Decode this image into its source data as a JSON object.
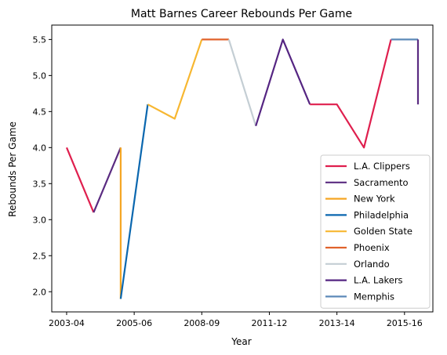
{
  "chart_data": {
    "type": "line",
    "title": "Matt Barnes Career Rebounds Per Game",
    "xlabel": "Year",
    "ylabel": "Rebounds Per Game",
    "ylim": [
      1.72,
      5.7
    ],
    "xlim": [
      -0.55,
      13.55
    ],
    "yticks": [
      "2.0",
      "2.5",
      "3.0",
      "3.5",
      "4.0",
      "4.5",
      "5.0",
      "5.5"
    ],
    "xticks": [
      {
        "x": 0,
        "label": "2003-04"
      },
      {
        "x": 2.5,
        "label": "2005-06"
      },
      {
        "x": 5,
        "label": "2008-09"
      },
      {
        "x": 7.5,
        "label": "2011-12"
      },
      {
        "x": 10,
        "label": "2013-14"
      },
      {
        "x": 12.5,
        "label": "2015-16"
      }
    ],
    "legend_position": "lower-right",
    "grid": false,
    "series": [
      {
        "name": "L.A. Clippers",
        "color": "#DF1F4E",
        "points": [
          [
            0,
            4.0
          ],
          [
            1,
            3.1
          ]
        ]
      },
      {
        "name": "Sacramento",
        "color": "#5A2B81",
        "points": [
          [
            1,
            3.1
          ],
          [
            2,
            4.0
          ]
        ]
      },
      {
        "name": "New York",
        "color": "#F5A623",
        "points": [
          [
            2,
            4.0
          ],
          [
            2,
            1.9
          ]
        ]
      },
      {
        "name": "Philadelphia",
        "color": "#0A67AF",
        "points": [
          [
            2,
            1.9
          ],
          [
            3,
            4.6
          ]
        ]
      },
      {
        "name": "Golden State",
        "color": "#F7B731",
        "points": [
          [
            3,
            4.6
          ],
          [
            4,
            4.4
          ],
          [
            5,
            5.5
          ]
        ]
      },
      {
        "name": "Phoenix",
        "color": "#E0622B",
        "points": [
          [
            5,
            5.5
          ],
          [
            6,
            5.5
          ]
        ]
      },
      {
        "name": "Orlando",
        "color": "#C4CED4",
        "points": [
          [
            6,
            5.5
          ],
          [
            7,
            4.3
          ]
        ]
      },
      {
        "name": "L.A. Lakers",
        "color": "#552582",
        "points": [
          [
            7,
            4.3
          ],
          [
            8,
            5.5
          ],
          [
            9,
            4.6
          ]
        ]
      },
      {
        "name": "L.A. Clippers",
        "color": "#DF1F4E",
        "points": [
          [
            9,
            4.6
          ],
          [
            10,
            4.6
          ],
          [
            11,
            4.0
          ],
          [
            12,
            5.5
          ]
        ]
      },
      {
        "name": "Memphis",
        "color": "#5D8AB8",
        "points": [
          [
            12,
            5.5
          ],
          [
            13,
            5.5
          ]
        ]
      },
      {
        "name": "Sacramento",
        "color": "#5A2B81",
        "points": [
          [
            13,
            5.5
          ],
          [
            13,
            4.6
          ]
        ]
      }
    ],
    "legend": [
      {
        "name": "L.A. Clippers",
        "color": "#DF1F4E"
      },
      {
        "name": "Sacramento",
        "color": "#5A2B81"
      },
      {
        "name": "New York",
        "color": "#F5A623"
      },
      {
        "name": "Philadelphia",
        "color": "#0A67AF"
      },
      {
        "name": "Golden State",
        "color": "#F7B731"
      },
      {
        "name": "Phoenix",
        "color": "#E0622B"
      },
      {
        "name": "Orlando",
        "color": "#C4CED4"
      },
      {
        "name": "L.A. Lakers",
        "color": "#552582"
      },
      {
        "name": "Memphis",
        "color": "#5D8AB8"
      }
    ]
  }
}
